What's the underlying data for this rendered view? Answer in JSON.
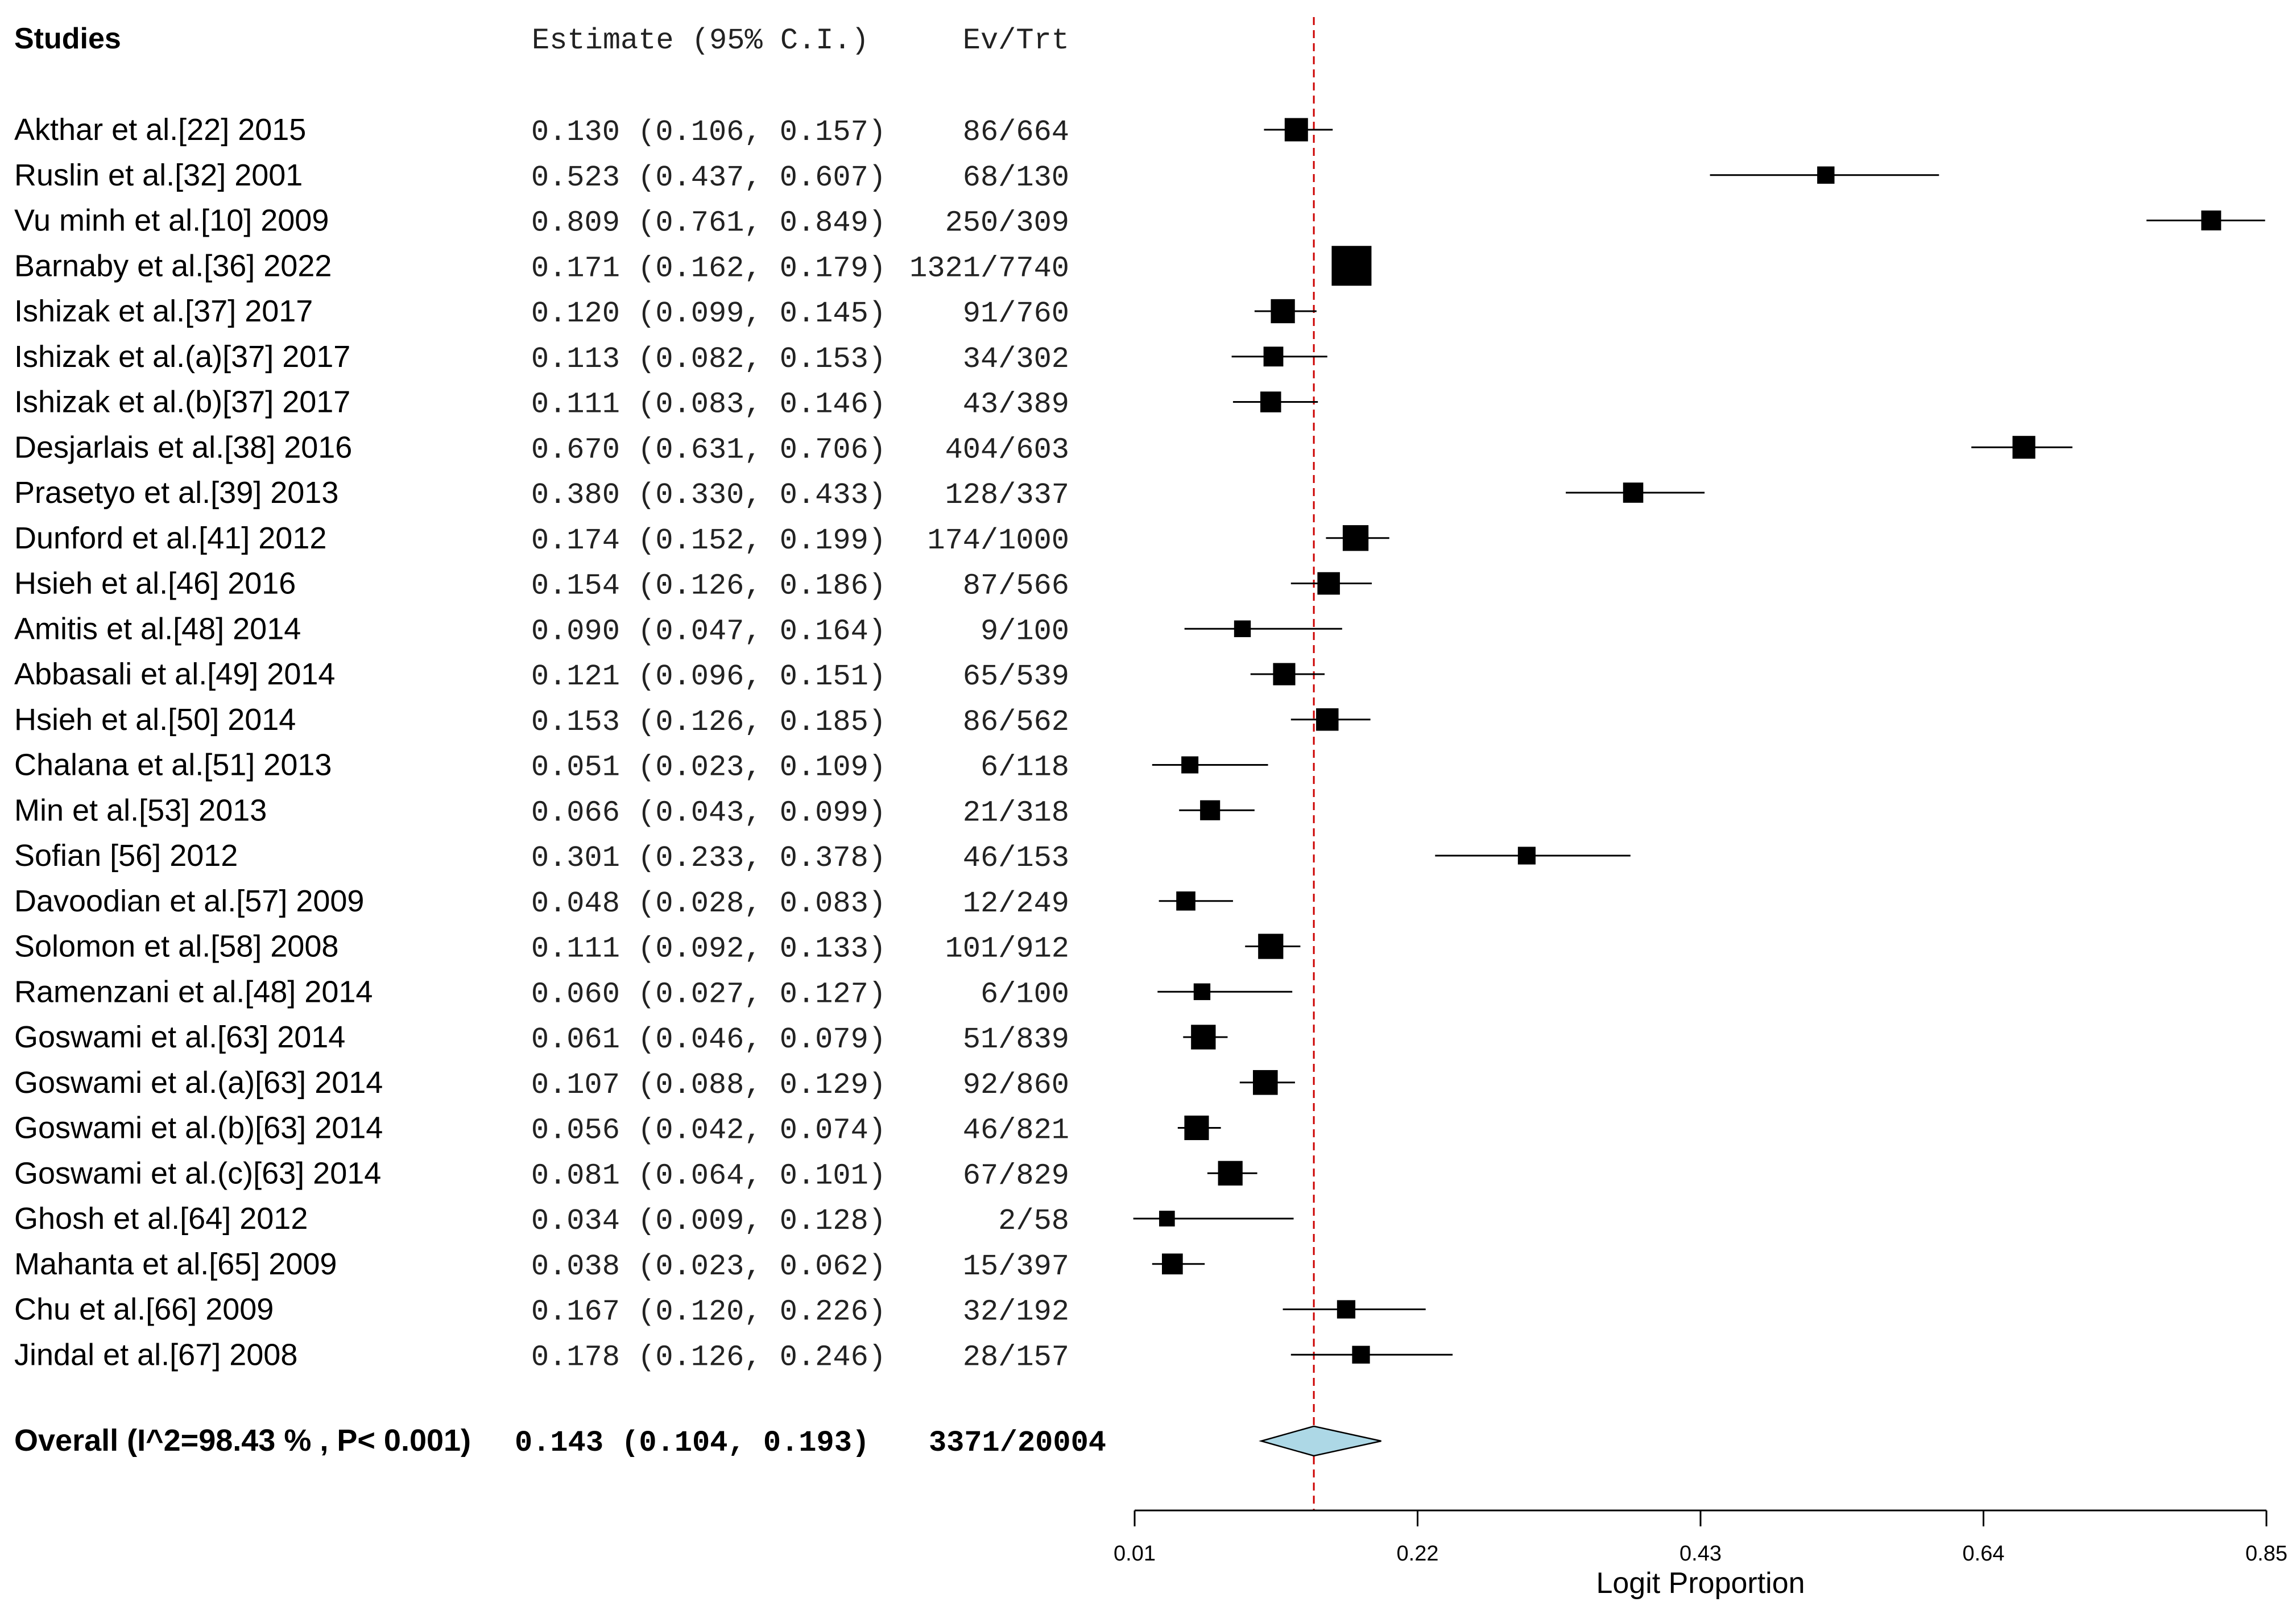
{
  "chart_data": {
    "type": "forest",
    "headers": {
      "studies": "Studies",
      "estimate": "Estimate (95% C.I.)",
      "ev_trt": "Ev/Trt"
    },
    "xlabel": "Logit Proportion",
    "x_ticks": [
      0.01,
      0.22,
      0.43,
      0.64,
      0.85
    ],
    "x_tick_labels": [
      "0.01",
      "0.22",
      "0.43",
      "0.64",
      "0.85"
    ],
    "xlim": [
      0.01,
      0.85
    ],
    "reference_line": 0.143,
    "colors": {
      "marker": "#000000",
      "reference_line": "#cc0000",
      "diamond_fill": "#add8e6",
      "diamond_stroke": "#000000"
    },
    "studies": [
      {
        "name": "Akthar et al.[22] 2015",
        "est": 0.13,
        "lo": 0.106,
        "hi": 0.157,
        "est_text": "0.130 (0.106, 0.157)",
        "ev_trt": "86/664",
        "events": 86,
        "total": 664
      },
      {
        "name": "Ruslin et al.[32] 2001",
        "est": 0.523,
        "lo": 0.437,
        "hi": 0.607,
        "est_text": "0.523 (0.437, 0.607)",
        "ev_trt": "68/130",
        "events": 68,
        "total": 130
      },
      {
        "name": "Vu minh et al.[10] 2009",
        "est": 0.809,
        "lo": 0.761,
        "hi": 0.849,
        "est_text": "0.809 (0.761, 0.849)",
        "ev_trt": "250/309",
        "events": 250,
        "total": 309
      },
      {
        "name": "Barnaby et al.[36] 2022",
        "est": 0.171,
        "lo": 0.162,
        "hi": 0.179,
        "est_text": "0.171 (0.162, 0.179)",
        "ev_trt": "1321/7740",
        "events": 1321,
        "total": 7740
      },
      {
        "name": "Ishizak et al.[37] 2017",
        "est": 0.12,
        "lo": 0.099,
        "hi": 0.145,
        "est_text": "0.120 (0.099, 0.145)",
        "ev_trt": "91/760",
        "events": 91,
        "total": 760
      },
      {
        "name": "Ishizak et al.(a)[37] 2017",
        "est": 0.113,
        "lo": 0.082,
        "hi": 0.153,
        "est_text": "0.113 (0.082, 0.153)",
        "ev_trt": "34/302",
        "events": 34,
        "total": 302
      },
      {
        "name": "Ishizak et al.(b)[37] 2017",
        "est": 0.111,
        "lo": 0.083,
        "hi": 0.146,
        "est_text": "0.111 (0.083, 0.146)",
        "ev_trt": "43/389",
        "events": 43,
        "total": 389
      },
      {
        "name": "Desjarlais et al.[38] 2016",
        "est": 0.67,
        "lo": 0.631,
        "hi": 0.706,
        "est_text": "0.670 (0.631, 0.706)",
        "ev_trt": "404/603",
        "events": 404,
        "total": 603
      },
      {
        "name": "Prasetyo et al.[39] 2013",
        "est": 0.38,
        "lo": 0.33,
        "hi": 0.433,
        "est_text": "0.380 (0.330, 0.433)",
        "ev_trt": "128/337",
        "events": 128,
        "total": 337
      },
      {
        "name": "Dunford et al.[41] 2012",
        "est": 0.174,
        "lo": 0.152,
        "hi": 0.199,
        "est_text": "0.174 (0.152, 0.199)",
        "ev_trt": "174/1000",
        "events": 174,
        "total": 1000
      },
      {
        "name": " Hsieh et al.[46] 2016",
        "est": 0.154,
        "lo": 0.126,
        "hi": 0.186,
        "est_text": "0.154 (0.126, 0.186)",
        "ev_trt": "87/566",
        "events": 87,
        "total": 566
      },
      {
        "name": "Amitis et al.[48] 2014",
        "est": 0.09,
        "lo": 0.047,
        "hi": 0.164,
        "est_text": "0.090 (0.047, 0.164)",
        "ev_trt": "9/100",
        "events": 9,
        "total": 100
      },
      {
        "name": "Abbasali et al.[49] 2014",
        "est": 0.121,
        "lo": 0.096,
        "hi": 0.151,
        "est_text": "0.121 (0.096, 0.151)",
        "ev_trt": "65/539",
        "events": 65,
        "total": 539
      },
      {
        "name": "Hsieh et al.[50] 2014",
        "est": 0.153,
        "lo": 0.126,
        "hi": 0.185,
        "est_text": "0.153 (0.126, 0.185)",
        "ev_trt": "86/562",
        "events": 86,
        "total": 562
      },
      {
        "name": "Chalana et al.[51] 2013",
        "est": 0.051,
        "lo": 0.023,
        "hi": 0.109,
        "est_text": "0.051 (0.023, 0.109)",
        "ev_trt": "6/118",
        "events": 6,
        "total": 118
      },
      {
        "name": "Min et al.[53] 2013",
        "est": 0.066,
        "lo": 0.043,
        "hi": 0.099,
        "est_text": "0.066 (0.043, 0.099)",
        "ev_trt": "21/318",
        "events": 21,
        "total": 318
      },
      {
        "name": "Sofian [56] 2012",
        "est": 0.301,
        "lo": 0.233,
        "hi": 0.378,
        "est_text": "0.301 (0.233, 0.378)",
        "ev_trt": "46/153",
        "events": 46,
        "total": 153
      },
      {
        "name": "Davoodian et al.[57] 2009",
        "est": 0.048,
        "lo": 0.028,
        "hi": 0.083,
        "est_text": "0.048 (0.028, 0.083)",
        "ev_trt": "12/249",
        "events": 12,
        "total": 249
      },
      {
        "name": "Solomon et al.[58] 2008",
        "est": 0.111,
        "lo": 0.092,
        "hi": 0.133,
        "est_text": "0.111 (0.092, 0.133)",
        "ev_trt": "101/912",
        "events": 101,
        "total": 912
      },
      {
        "name": "Ramenzani et al.[48] 2014",
        "est": 0.06,
        "lo": 0.027,
        "hi": 0.127,
        "est_text": "0.060 (0.027, 0.127)",
        "ev_trt": "6/100",
        "events": 6,
        "total": 100
      },
      {
        "name": "Goswami et al.[63] 2014",
        "est": 0.061,
        "lo": 0.046,
        "hi": 0.079,
        "est_text": "0.061 (0.046, 0.079)",
        "ev_trt": "51/839",
        "events": 51,
        "total": 839
      },
      {
        "name": "Goswami et al.(a)[63] 2014",
        "est": 0.107,
        "lo": 0.088,
        "hi": 0.129,
        "est_text": "0.107 (0.088, 0.129)",
        "ev_trt": "92/860",
        "events": 92,
        "total": 860
      },
      {
        "name": "Goswami et al.(b)[63] 2014",
        "est": 0.056,
        "lo": 0.042,
        "hi": 0.074,
        "est_text": "0.056 (0.042, 0.074)",
        "ev_trt": "46/821",
        "events": 46,
        "total": 821
      },
      {
        "name": "Goswami et al.(c)[63] 2014",
        "est": 0.081,
        "lo": 0.064,
        "hi": 0.101,
        "est_text": "0.081 (0.064, 0.101)",
        "ev_trt": "67/829",
        "events": 67,
        "total": 829
      },
      {
        "name": "Ghosh et al.[64] 2012",
        "est": 0.034,
        "lo": 0.009,
        "hi": 0.128,
        "est_text": "0.034 (0.009, 0.128)",
        "ev_trt": "2/58",
        "events": 2,
        "total": 58
      },
      {
        "name": "Mahanta et al.[65] 2009",
        "est": 0.038,
        "lo": 0.023,
        "hi": 0.062,
        "est_text": "0.038 (0.023, 0.062)",
        "ev_trt": "15/397",
        "events": 15,
        "total": 397
      },
      {
        "name": "Chu et al.[66] 2009",
        "est": 0.167,
        "lo": 0.12,
        "hi": 0.226,
        "est_text": "0.167 (0.120, 0.226)",
        "ev_trt": "32/192",
        "events": 32,
        "total": 192
      },
      {
        "name": "Jindal et al.[67] 2008",
        "est": 0.178,
        "lo": 0.126,
        "hi": 0.246,
        "est_text": "0.178 (0.126, 0.246)",
        "ev_trt": "28/157",
        "events": 28,
        "total": 157
      }
    ],
    "overall": {
      "label": "Overall (I^2=98.43 % , P< 0.001)",
      "est": 0.143,
      "lo": 0.104,
      "hi": 0.193,
      "est_text": "0.143 (0.104, 0.193)",
      "ev_trt": "3371/20004"
    }
  }
}
